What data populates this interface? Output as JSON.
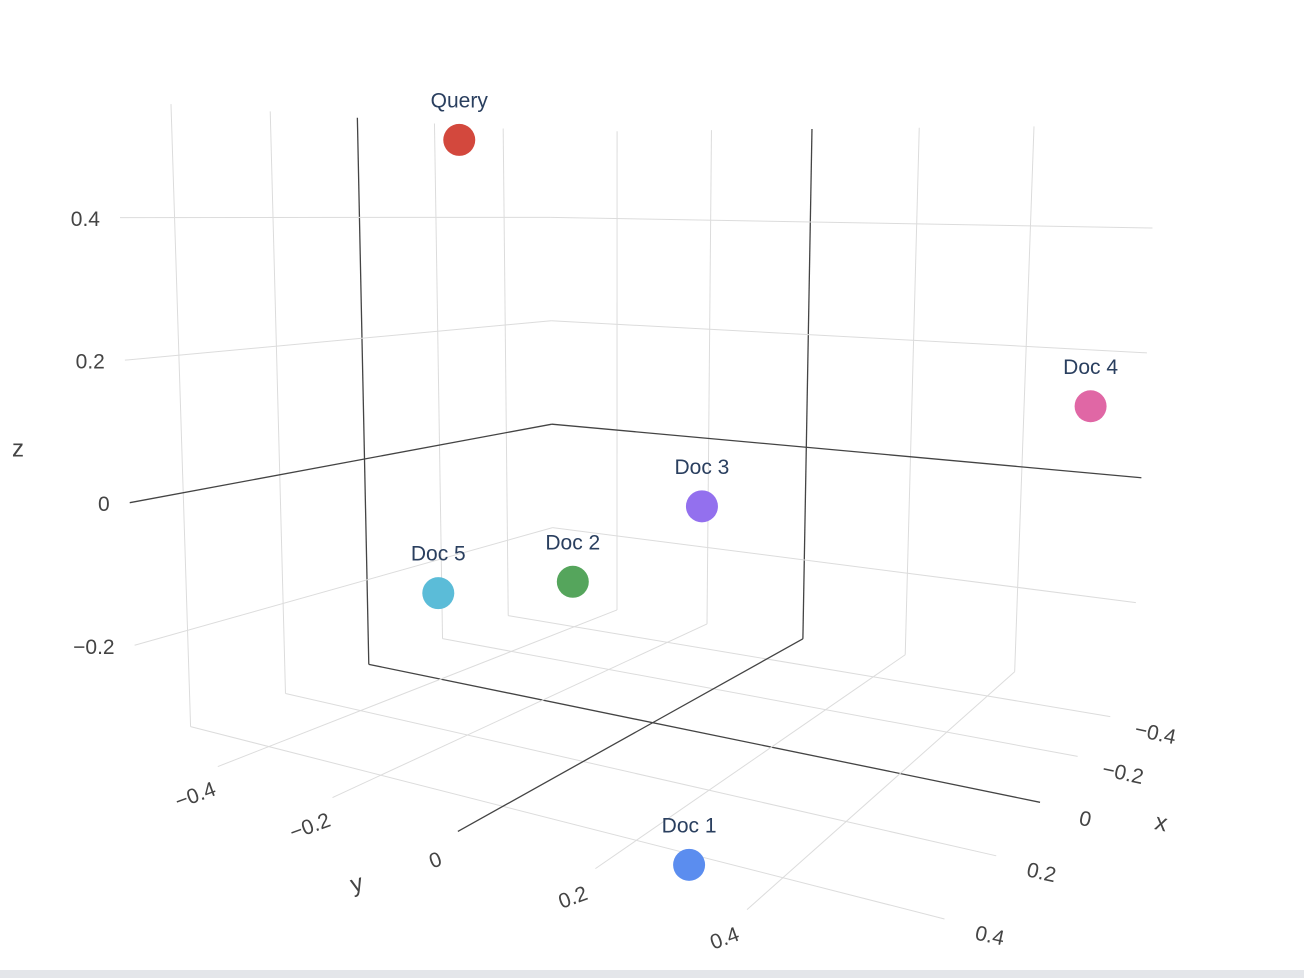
{
  "chart_data": {
    "type": "scatter3d",
    "xaxis_title": "x",
    "yaxis_title": "y",
    "zaxis_title": "z",
    "xlim": [
      -0.55,
      0.5
    ],
    "ylim": [
      -0.55,
      0.6
    ],
    "zlim": [
      -0.34,
      0.565
    ],
    "xticks": [
      {
        "value": -0.4,
        "label": "−0.4"
      },
      {
        "value": -0.2,
        "label": "−0.2"
      },
      0,
      0.2,
      0.4
    ],
    "yticks": [
      {
        "value": -0.4,
        "label": "−0.4"
      },
      {
        "value": -0.2,
        "label": "−0.2"
      },
      0,
      0.2,
      0.4
    ],
    "zticks": [
      {
        "value": -0.2,
        "label": "−0.2"
      },
      0,
      0.2,
      0.4
    ],
    "grid": true,
    "points": [
      {
        "name": "Query",
        "x": 0,
        "y": -0.35,
        "z": 0.53,
        "color": "#d3483d"
      },
      {
        "name": "Doc 1",
        "x": 0.45,
        "y": 0.3,
        "z": -0.33,
        "color": "#5b8def"
      },
      {
        "name": "Doc 2",
        "x": 0.1,
        "y": -0.08,
        "z": -0.12,
        "color": "#55a55c"
      },
      {
        "name": "Doc 3",
        "x": -0.06,
        "y": 0.05,
        "z": -0.02,
        "color": "#9370ee"
      },
      {
        "name": "Doc 4",
        "x": -0.4,
        "y": 0.55,
        "z": 0.13,
        "color": "#e067a5"
      },
      {
        "name": "Doc 5",
        "x": 0.3,
        "y": -0.175,
        "z": -0.11,
        "color": "#5bbcd8"
      }
    ]
  }
}
